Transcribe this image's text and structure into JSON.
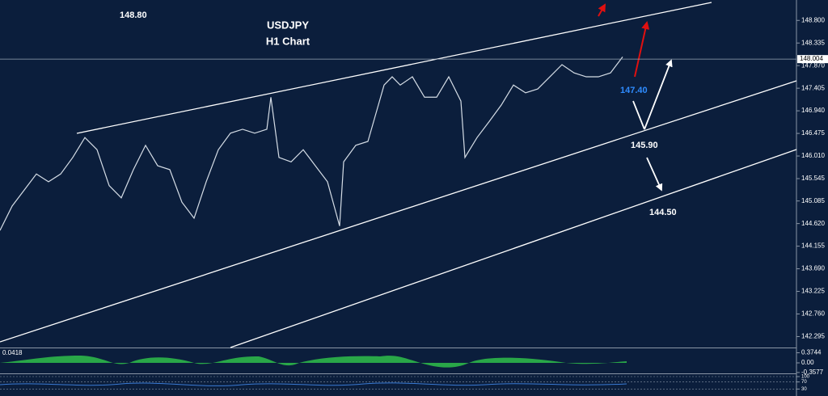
{
  "chart_data": {
    "type": "line",
    "title": "USDJPY",
    "subtitle": "H1 Chart",
    "x": [
      0,
      3,
      6,
      9,
      12,
      15,
      18,
      21,
      24,
      27,
      30,
      33,
      36,
      39,
      42,
      45,
      48,
      51,
      54,
      57,
      60,
      63,
      66,
      67,
      69,
      72,
      75,
      78,
      81,
      84,
      85,
      88,
      91,
      93,
      95,
      97,
      99,
      102,
      105,
      108,
      111,
      114,
      115,
      118,
      121,
      124,
      127,
      130,
      133,
      136,
      139,
      142,
      145,
      148,
      151,
      154
    ],
    "series": [
      {
        "color": "#d5dde6",
        "values": [
          144.48,
          144.98,
          145.31,
          145.64,
          145.48,
          145.64,
          145.98,
          146.39,
          146.14,
          145.4,
          145.15,
          145.73,
          146.23,
          145.81,
          145.73,
          145.06,
          144.73,
          145.48,
          146.14,
          146.48,
          146.56,
          146.48,
          146.56,
          147.22,
          145.98,
          145.89,
          146.14,
          145.81,
          145.48,
          144.57,
          145.89,
          146.23,
          146.31,
          146.89,
          147.47,
          147.64,
          147.47,
          147.64,
          147.22,
          147.22,
          147.64,
          147.14,
          145.98,
          146.39,
          146.72,
          147.06,
          147.47,
          147.31,
          147.39,
          147.64,
          147.89,
          147.72,
          147.64,
          147.64,
          147.72,
          148.05
        ]
      }
    ],
    "xlim": [
      0,
      197
    ],
    "ylim": [
      142.07,
      149.22
    ],
    "yticks": [
      {
        "value": 148.8,
        "label": "148.800"
      },
      {
        "value": 148.335,
        "label": "148.335"
      },
      {
        "value": 147.87,
        "label": "147.870"
      },
      {
        "value": 147.405,
        "label": "147.405"
      },
      {
        "value": 146.94,
        "label": "146.940"
      },
      {
        "value": 146.475,
        "label": "146.475"
      },
      {
        "value": 146.01,
        "label": "146.010"
      },
      {
        "value": 145.545,
        "label": "145.545"
      },
      {
        "value": 145.085,
        "label": "145.085"
      },
      {
        "value": 144.62,
        "label": "144.620"
      },
      {
        "value": 144.155,
        "label": "144.155"
      },
      {
        "value": 143.69,
        "label": "143.690"
      },
      {
        "value": 143.225,
        "label": "143.225"
      },
      {
        "value": 142.76,
        "label": "142.760"
      },
      {
        "value": 142.295,
        "label": "142.295"
      }
    ],
    "last_price": 148.004,
    "annotations": [
      {
        "text": "148.80",
        "color": "#ffffff"
      },
      {
        "text": "147.40",
        "color": "#2f8cff"
      },
      {
        "text": "145.90",
        "color": "#ffffff"
      },
      {
        "text": "144.50",
        "color": "#ffffff"
      }
    ]
  },
  "macd": {
    "label": "0.0418",
    "ticks": [
      0.3744,
      {
        "value": 0,
        "label": "0.00"
      },
      -0.3577
    ],
    "ylim": [
      -0.45,
      0.45
    ]
  },
  "rsi": {
    "ticks": [
      100,
      70,
      30
    ],
    "ylim": [
      0,
      100
    ]
  }
}
